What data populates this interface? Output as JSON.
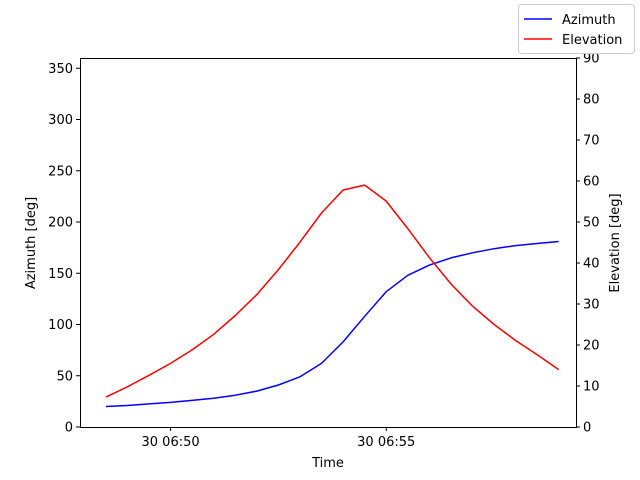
{
  "chart_data": {
    "type": "line",
    "xlabel": "Time",
    "ylabel_left": "Azimuth [deg]",
    "ylabel_right": "Elevation [deg]",
    "x_range_min": [
      47.9,
      59.4
    ],
    "x_ticks": [
      {
        "label": "30 06:50",
        "value_min": 50
      },
      {
        "label": "30 06:55",
        "value_min": 55
      }
    ],
    "ylim_left": [
      0,
      360
    ],
    "yticks_left": [
      "0",
      "50",
      "100",
      "150",
      "200",
      "250",
      "300",
      "350"
    ],
    "ylim_right": [
      0,
      90
    ],
    "yticks_right": [
      "0",
      "10",
      "20",
      "30",
      "40",
      "50",
      "60",
      "70",
      "80",
      "90"
    ],
    "legend": {
      "placement": "top-right"
    },
    "grid": false,
    "series": [
      {
        "name": "Azimuth",
        "axis": "left",
        "color": "#0000ff",
        "x": [
          48.5,
          49.0,
          49.5,
          50.0,
          50.5,
          51.0,
          51.5,
          52.0,
          52.5,
          53.0,
          53.5,
          54.0,
          54.5,
          55.0,
          55.5,
          56.0,
          56.5,
          57.0,
          57.5,
          58.0,
          58.5,
          59.0
        ],
        "y": [
          20,
          21,
          22.5,
          24,
          26,
          28,
          31,
          35,
          41,
          49,
          62,
          83,
          108,
          132,
          148,
          158,
          165,
          170,
          174,
          177,
          179,
          181
        ]
      },
      {
        "name": "Elevation",
        "axis": "right",
        "color": "#ff0000",
        "x": [
          48.5,
          49.0,
          49.5,
          50.0,
          50.5,
          51.0,
          51.5,
          52.0,
          52.5,
          53.0,
          53.5,
          54.0,
          54.5,
          55.0,
          55.5,
          56.0,
          56.5,
          57.0,
          57.5,
          58.0,
          58.5,
          59.0
        ],
        "y": [
          7.3,
          9.8,
          12.6,
          15.5,
          18.8,
          22.6,
          27.2,
          32.3,
          38.4,
          45.1,
          52.2,
          57.8,
          59.0,
          55.1,
          48.4,
          41.3,
          34.9,
          29.5,
          25,
          21.1,
          17.6,
          14.0
        ]
      }
    ]
  }
}
